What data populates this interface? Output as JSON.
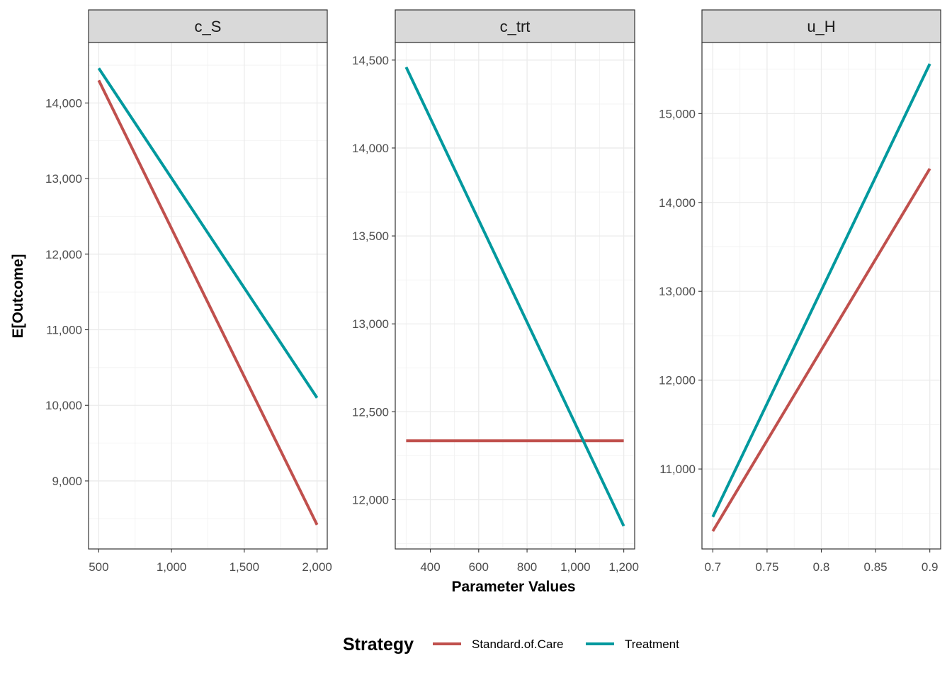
{
  "chart_data": {
    "type": "line",
    "ylabel": "E[Outcome]",
    "xlabel": "Parameter Values",
    "grid": true,
    "legend": {
      "title": "Strategy",
      "position": "bottom",
      "entries": [
        {
          "name": "Standard.of.Care",
          "color": "#C0504D"
        },
        {
          "name": "Treatment",
          "color": "#00999E"
        }
      ]
    },
    "facets": [
      {
        "label": "c_S",
        "xlim": [
          430,
          2070
        ],
        "ylim": [
          8100,
          14800
        ],
        "xticks": [
          500,
          1000,
          1500,
          2000
        ],
        "xtick_labels": [
          "500",
          "1,000",
          "1,500",
          "2,000"
        ],
        "yticks": [
          9000,
          10000,
          11000,
          12000,
          13000,
          14000
        ],
        "ytick_labels": [
          "9,000",
          "10,000",
          "11,000",
          "12,000",
          "13,000",
          "14,000"
        ],
        "series": [
          {
            "name": "Standard.of.Care",
            "x": [
              500,
              2000
            ],
            "y": [
              14300,
              8420
            ]
          },
          {
            "name": "Treatment",
            "x": [
              500,
              2000
            ],
            "y": [
              14460,
              10100
            ]
          }
        ]
      },
      {
        "label": "c_trt",
        "xlim": [
          255,
          1245
        ],
        "ylim": [
          11720,
          14600
        ],
        "xticks": [
          400,
          600,
          800,
          1000,
          1200
        ],
        "xtick_labels": [
          "400",
          "600",
          "800",
          "1,000",
          "1,200"
        ],
        "yticks": [
          12000,
          12500,
          13000,
          13500,
          14000,
          14500
        ],
        "ytick_labels": [
          "12,000",
          "12,500",
          "13,000",
          "13,500",
          "14,000",
          "14,500"
        ],
        "series": [
          {
            "name": "Standard.of.Care",
            "x": [
              300,
              1200
            ],
            "y": [
              12335,
              12335
            ]
          },
          {
            "name": "Treatment",
            "x": [
              300,
              1200
            ],
            "y": [
              14460,
              11850
            ]
          }
        ]
      },
      {
        "label": "u_H",
        "xlim": [
          0.69,
          0.91
        ],
        "ylim": [
          10100,
          15800
        ],
        "xticks": [
          0.7,
          0.75,
          0.8,
          0.85,
          0.9
        ],
        "xtick_labels": [
          "0.7",
          "0.75",
          "0.8",
          "0.85",
          "0.9"
        ],
        "yticks": [
          11000,
          12000,
          13000,
          14000,
          15000
        ],
        "ytick_labels": [
          "11,000",
          "12,000",
          "13,000",
          "14,000",
          "15,000"
        ],
        "series": [
          {
            "name": "Standard.of.Care",
            "x": [
              0.7,
              0.9
            ],
            "y": [
              10300,
              14380
            ]
          },
          {
            "name": "Treatment",
            "x": [
              0.7,
              0.9
            ],
            "y": [
              10460,
              15560
            ]
          }
        ]
      }
    ]
  }
}
